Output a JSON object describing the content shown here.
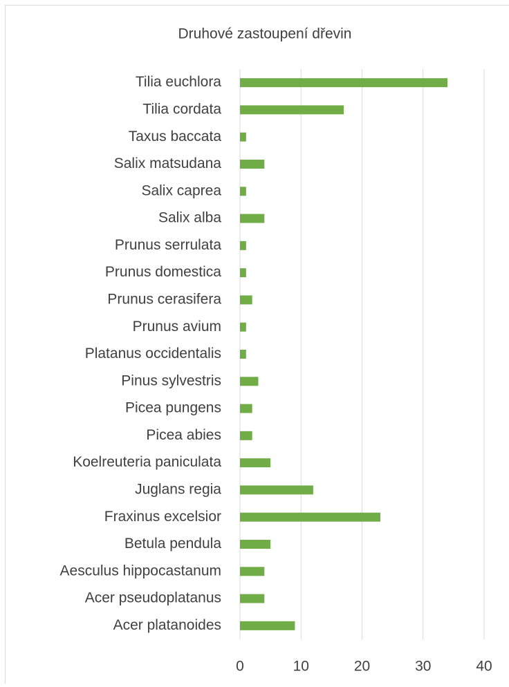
{
  "chart_data": {
    "type": "bar",
    "orientation": "horizontal",
    "title": "Druhové zastoupení dřevin",
    "categories": [
      "Tilia euchlora",
      "Tilia cordata",
      "Taxus baccata",
      "Salix matsudana",
      "Salix caprea",
      "Salix alba",
      "Prunus serrulata",
      "Prunus domestica",
      "Prunus cerasifera",
      "Prunus avium",
      "Platanus occidentalis",
      "Pinus sylvestris",
      "Picea pungens",
      "Picea abies",
      "Koelreuteria paniculata",
      "Juglans regia",
      "Fraxinus excelsior",
      "Betula pendula",
      "Aesculus hippocastanum",
      "Acer pseudoplatanus",
      "Acer platanoides"
    ],
    "values": [
      34,
      17,
      1,
      4,
      1,
      4,
      1,
      1,
      2,
      1,
      1,
      3,
      2,
      2,
      5,
      12,
      23,
      5,
      4,
      4,
      9
    ],
    "color": "#70ad47",
    "xlim": [
      0,
      40
    ],
    "xticks": [
      0,
      10,
      20,
      30,
      40
    ],
    "grid": true
  }
}
